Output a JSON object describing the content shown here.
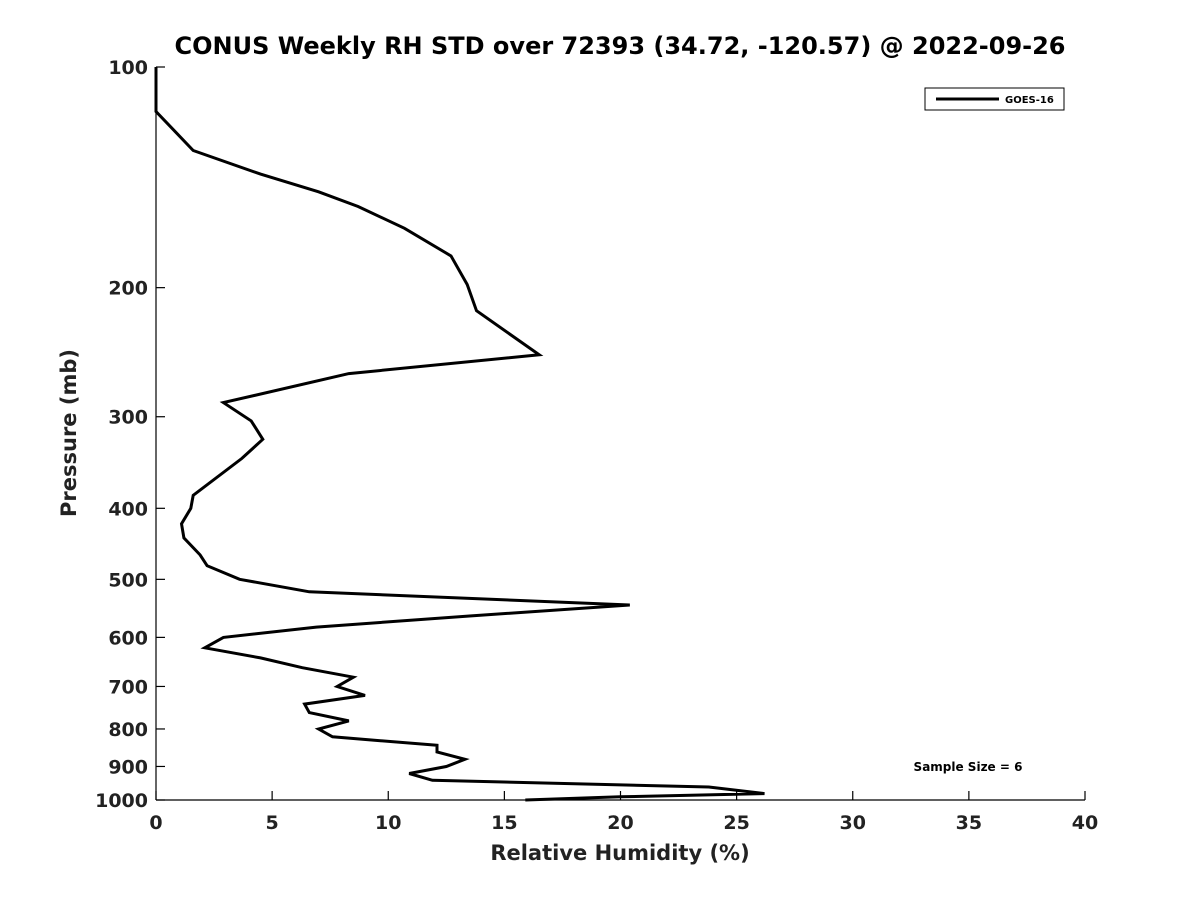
{
  "chart_data": {
    "type": "line",
    "title": "CONUS Weekly RH STD over 72393 (34.72, -120.57) @ 2022-09-26",
    "xlabel": "Relative Humidity (%)",
    "ylabel": "Pressure (mb)",
    "xlim": [
      0,
      40
    ],
    "ylim": [
      100,
      1000
    ],
    "y_scale": "log",
    "y_reversed": true,
    "x_ticks": [
      0,
      5,
      10,
      15,
      20,
      25,
      30,
      35,
      40
    ],
    "y_ticks": [
      100,
      200,
      300,
      400,
      500,
      600,
      700,
      800,
      900,
      1000
    ],
    "grid": false,
    "legend": {
      "placement": "top-right",
      "entries": [
        "GOES-16"
      ]
    },
    "annotation": "Sample Size = 6",
    "series": [
      {
        "name": "GOES-16",
        "color": "#000000",
        "points": [
          {
            "rh": 0.0,
            "p": 100
          },
          {
            "rh": 0.0,
            "p": 115
          },
          {
            "rh": 1.6,
            "p": 130
          },
          {
            "rh": 4.5,
            "p": 140
          },
          {
            "rh": 7.0,
            "p": 148
          },
          {
            "rh": 8.7,
            "p": 155
          },
          {
            "rh": 10.7,
            "p": 166
          },
          {
            "rh": 12.7,
            "p": 181
          },
          {
            "rh": 13.4,
            "p": 198
          },
          {
            "rh": 13.8,
            "p": 215
          },
          {
            "rh": 16.5,
            "p": 247
          },
          {
            "rh": 8.3,
            "p": 262
          },
          {
            "rh": 2.9,
            "p": 287
          },
          {
            "rh": 4.1,
            "p": 304
          },
          {
            "rh": 4.6,
            "p": 322
          },
          {
            "rh": 3.7,
            "p": 342
          },
          {
            "rh": 1.6,
            "p": 384
          },
          {
            "rh": 1.5,
            "p": 400
          },
          {
            "rh": 1.1,
            "p": 420
          },
          {
            "rh": 1.2,
            "p": 439
          },
          {
            "rh": 1.9,
            "p": 463
          },
          {
            "rh": 2.2,
            "p": 479
          },
          {
            "rh": 3.6,
            "p": 500
          },
          {
            "rh": 6.6,
            "p": 520
          },
          {
            "rh": 20.4,
            "p": 542
          },
          {
            "rh": 13.5,
            "p": 561
          },
          {
            "rh": 6.9,
            "p": 581
          },
          {
            "rh": 2.9,
            "p": 600
          },
          {
            "rh": 2.1,
            "p": 620
          },
          {
            "rh": 4.5,
            "p": 640
          },
          {
            "rh": 6.3,
            "p": 660
          },
          {
            "rh": 8.5,
            "p": 680
          },
          {
            "rh": 7.8,
            "p": 700
          },
          {
            "rh": 9.0,
            "p": 720
          },
          {
            "rh": 6.4,
            "p": 740
          },
          {
            "rh": 6.6,
            "p": 760
          },
          {
            "rh": 8.3,
            "p": 780
          },
          {
            "rh": 7.0,
            "p": 800
          },
          {
            "rh": 7.6,
            "p": 820
          },
          {
            "rh": 12.1,
            "p": 842
          },
          {
            "rh": 12.1,
            "p": 860
          },
          {
            "rh": 13.3,
            "p": 880
          },
          {
            "rh": 12.5,
            "p": 900
          },
          {
            "rh": 10.9,
            "p": 920
          },
          {
            "rh": 11.9,
            "p": 940
          },
          {
            "rh": 23.8,
            "p": 960
          },
          {
            "rh": 26.2,
            "p": 980
          },
          {
            "rh": 20.0,
            "p": 990
          },
          {
            "rh": 15.9,
            "p": 1000
          }
        ]
      }
    ]
  }
}
